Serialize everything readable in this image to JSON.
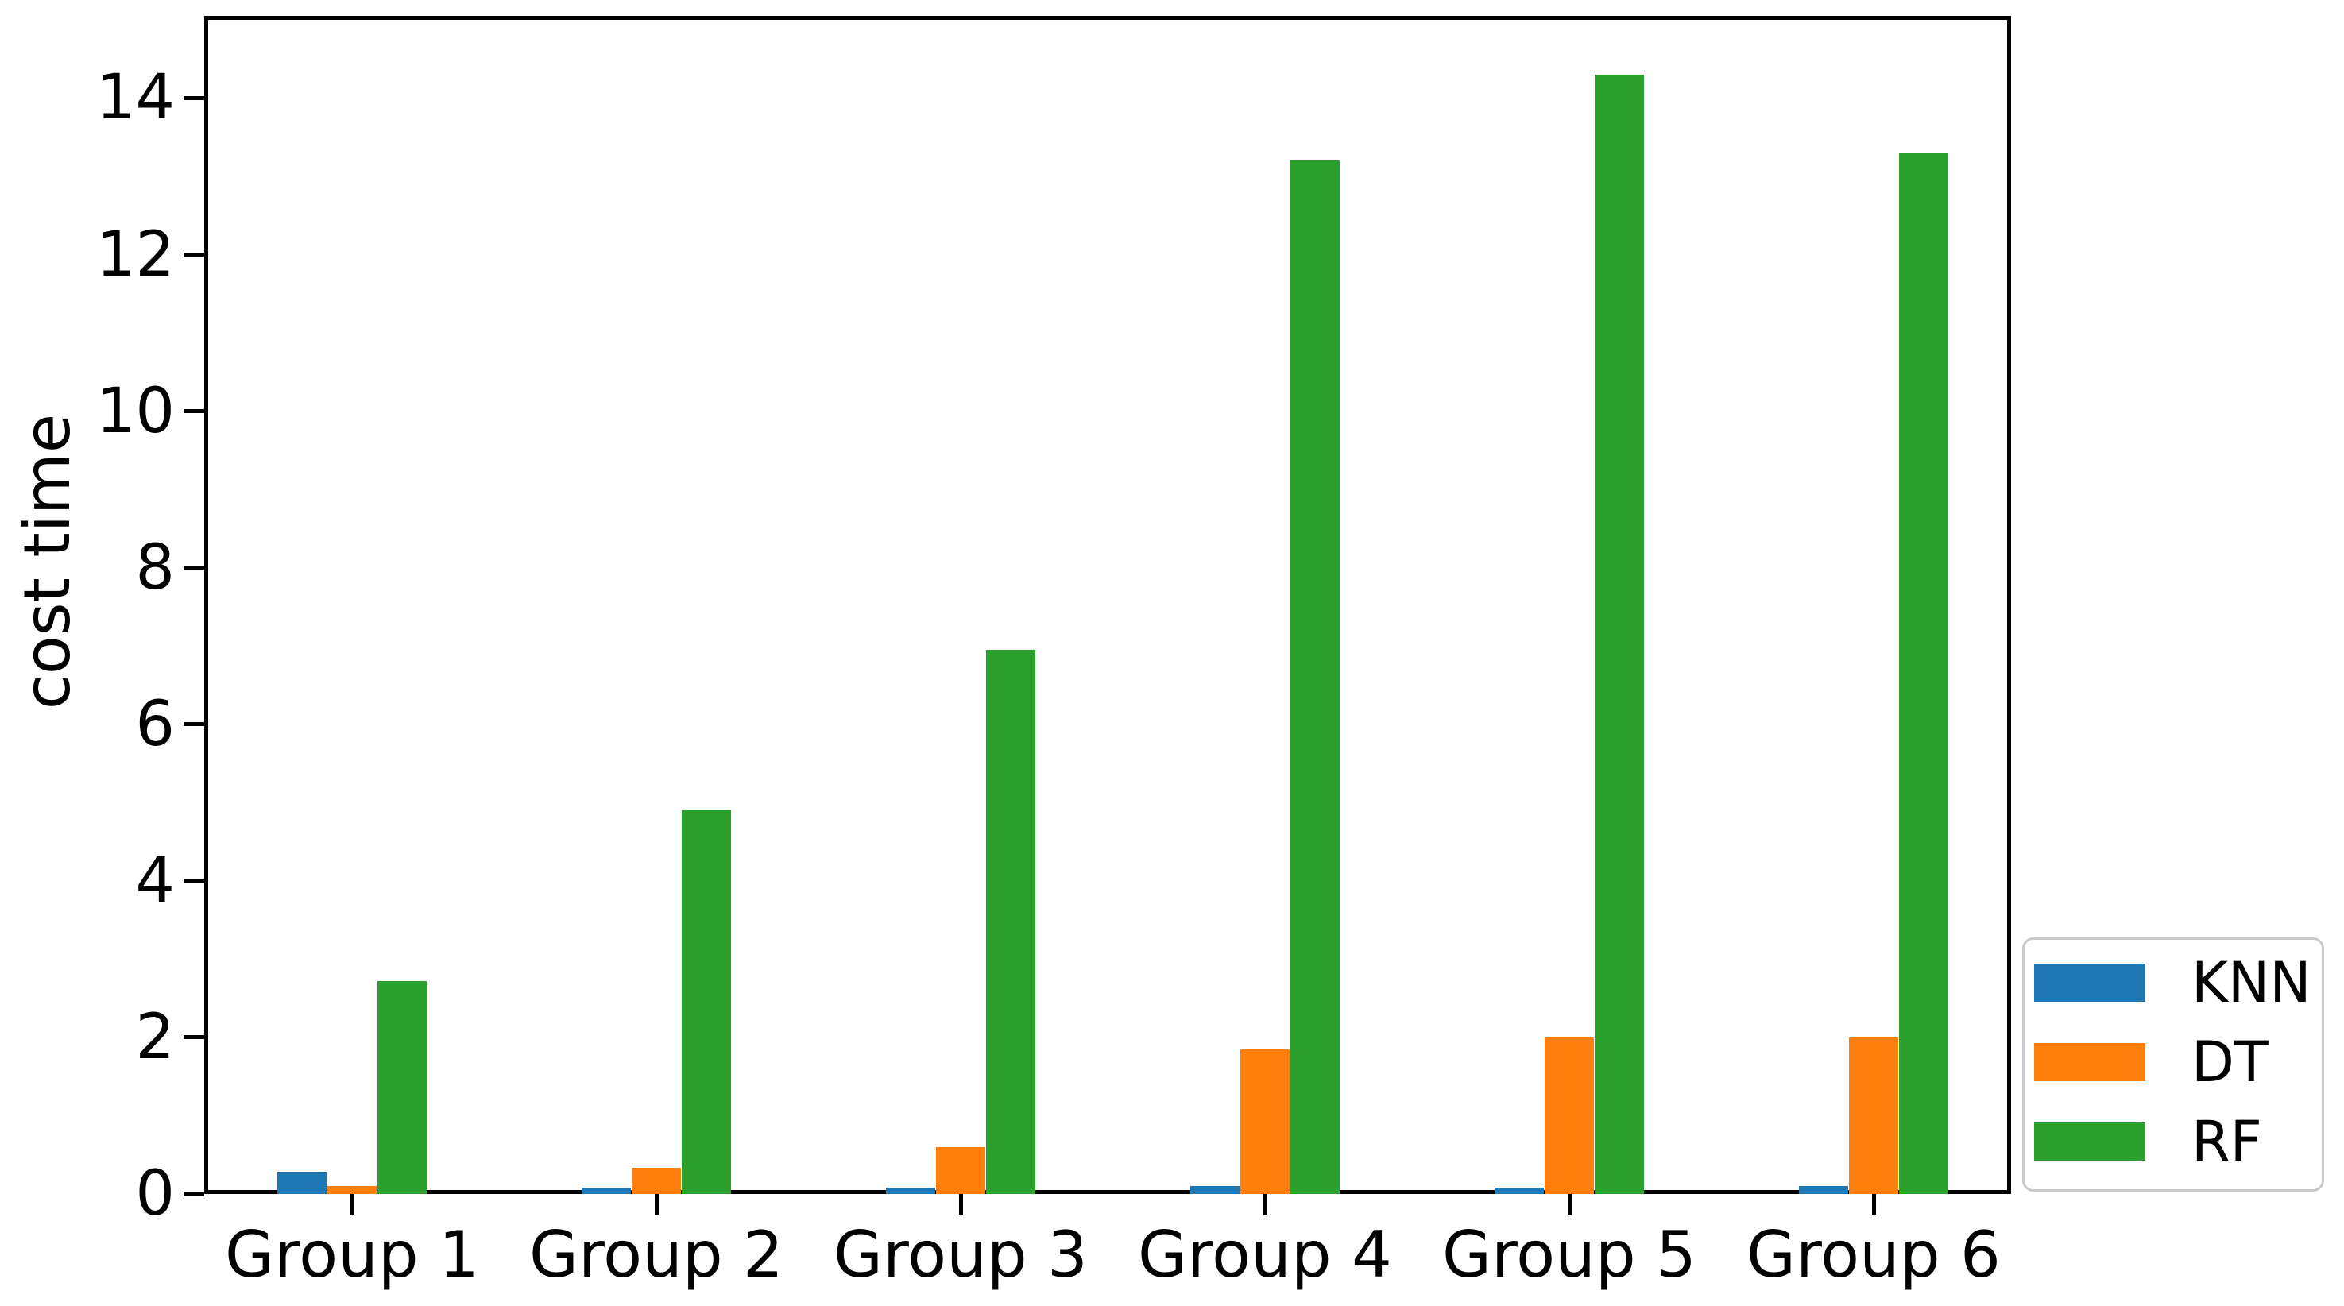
{
  "figure": {
    "background_color": "#ffffff",
    "axis_color": "#000000"
  },
  "chart_data": {
    "type": "bar",
    "title": "",
    "xlabel": "",
    "ylabel": "cost time",
    "categories": [
      "Group 1",
      "Group 2",
      "Group 3",
      "Group 4",
      "Group 5",
      "Group 6"
    ],
    "series": [
      {
        "name": "KNN",
        "color": "#1f77b4",
        "values": [
          0.28,
          0.08,
          0.08,
          0.1,
          0.08,
          0.1
        ]
      },
      {
        "name": "DT",
        "color": "#ff7f0e",
        "values": [
          0.1,
          0.33,
          0.6,
          1.85,
          2.0,
          2.0
        ]
      },
      {
        "name": "RF",
        "color": "#2ca02c",
        "values": [
          2.72,
          4.9,
          6.95,
          13.2,
          14.3,
          13.3
        ]
      }
    ],
    "ylim": [
      0,
      15.05
    ],
    "yticks": [
      0,
      2,
      4,
      6,
      8,
      10,
      12,
      14
    ],
    "grid": false,
    "legend": {
      "entries": [
        "KNN",
        "DT",
        "RF"
      ],
      "position": "lower-right-outside-overlap"
    }
  }
}
